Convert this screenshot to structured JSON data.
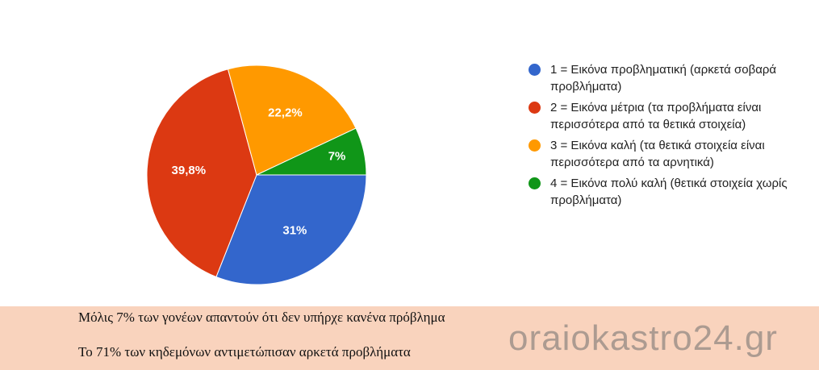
{
  "chart_data": {
    "type": "pie",
    "categories": [
      "1 = Εικόνα προβληματική (αρκετά σοβαρά προβλήματα)",
      "2 = Εικόνα μέτρια (τα προβλήματα είναι περισσότερα από τα θετικά στοιχεία)",
      "3 = Εικόνα καλή (τα θετικά στοιχεία είναι περισσότερα από τα αρνητικά)",
      "4 = Εικόνα πολύ καλή (θετικά στοιχεία χωρίς προβλήματα)"
    ],
    "values": [
      31,
      39.8,
      22.2,
      7
    ],
    "value_labels": [
      "31%",
      "39,8%",
      "22,2%",
      "7%"
    ],
    "colors": [
      "#3366cc",
      "#dc3912",
      "#ff9900",
      "#109618"
    ]
  },
  "captions": [
    "Μόλις 7% των γονέων απαντούν ότι δεν υπήρχε κανένα πρόβλημα",
    "Το 71% των κηδεμόνων αντιμετώπισαν αρκετά προβλήματα"
  ],
  "watermark": "oraiokastro24.gr"
}
